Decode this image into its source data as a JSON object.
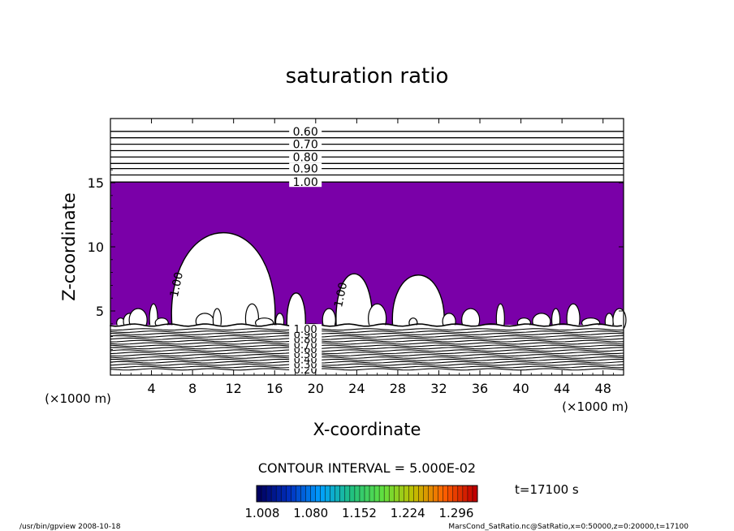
{
  "chart_data": {
    "type": "contour",
    "title": "saturation ratio",
    "xlabel": "X-coordinate",
    "ylabel": "Z-coordinate",
    "x_unit_label": "(×1000 m)",
    "z_unit_label": "(×1000 m)",
    "xlim": [
      0,
      50
    ],
    "ylim": [
      0,
      20
    ],
    "x_ticks": [
      4,
      8,
      12,
      16,
      20,
      24,
      28,
      32,
      36,
      40,
      44,
      48
    ],
    "y_ticks": [
      5,
      10,
      15
    ],
    "fill_color": "#7a00a8",
    "fill_threshold": 1.0,
    "upper_contours": [
      {
        "z": 19.0,
        "label": "0.60"
      },
      {
        "z": 18.5,
        "label": ""
      },
      {
        "z": 18.0,
        "label": "0.70"
      },
      {
        "z": 17.5,
        "label": ""
      },
      {
        "z": 17.0,
        "label": "0.80"
      },
      {
        "z": 16.5,
        "label": ""
      },
      {
        "z": 16.1,
        "label": "0.90"
      },
      {
        "z": 15.6,
        "label": ""
      },
      {
        "z": 15.05,
        "label": "1.00"
      }
    ],
    "lower_labels": [
      "0.20",
      "0.30",
      "0.40",
      "0.50",
      "0.60",
      "0.70",
      "0.80",
      "0.90",
      "1.00"
    ],
    "inline_labels": [
      {
        "x": 6.0,
        "z": 7.0,
        "text": "1.00"
      },
      {
        "x": 22.0,
        "z": 6.2,
        "text": "1.00"
      }
    ],
    "plumes": [
      {
        "x0": 6.0,
        "x1": 16.0,
        "top": 11.1
      },
      {
        "x0": 17.2,
        "x1": 19.0,
        "top": 6.4
      },
      {
        "x0": 22.0,
        "x1": 25.5,
        "top": 7.9
      },
      {
        "x0": 27.5,
        "x1": 32.5,
        "top": 7.8
      }
    ],
    "contour_interval_label": "CONTOUR INTERVAL = 5.000E-02",
    "colorbar": {
      "ticks": [
        "1.008",
        "1.080",
        "1.152",
        "1.224",
        "1.296"
      ],
      "colors": [
        "#000060",
        "#0030c0",
        "#00a0ff",
        "#20c080",
        "#60e040",
        "#c0c000",
        "#ff6000",
        "#c00000"
      ]
    },
    "time_label": "t=17100 s",
    "footer_left": "/usr/bin/gpview   2008-10-18",
    "footer_right": "MarsCond_SatRatio.nc@SatRatio,x=0:50000,z=0:20000,t=17100"
  }
}
